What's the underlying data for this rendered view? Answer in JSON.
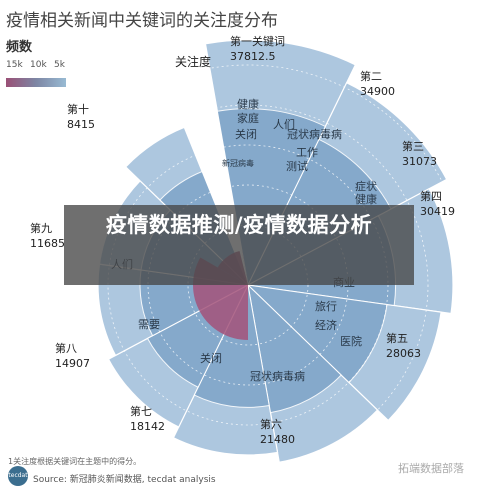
{
  "title": "疫情相关新闻中关键词的关注度分布",
  "legend": {
    "title": "频数",
    "ticks": [
      "15k",
      "10k",
      "5k"
    ]
  },
  "banner": "疫情数据推测/疫情数据分析",
  "footnote": "1关注度根据关键词在主题中的得分。",
  "source": "Source: 新冠肺炎新闻数据, tecdat analysis",
  "logo_text": "tecdat",
  "watermark": "拓端数据部落",
  "colors": {
    "outer": "#a5c1dc",
    "mid": "#7fa4c8",
    "inner": "#8a7ca6",
    "core": "#a3527a"
  },
  "chart_data": {
    "type": "radial-bar",
    "axis_label": "关注度",
    "sectors": [
      {
        "name": "第一关键词",
        "value": "37812.5"
      },
      {
        "name": "第二",
        "value": "34900"
      },
      {
        "name": "第三",
        "value": "31073"
      },
      {
        "name": "第四",
        "value": "30419"
      },
      {
        "name": "第五",
        "value": "28063"
      },
      {
        "name": "第六",
        "value": "21480"
      },
      {
        "name": "第七",
        "value": "18142"
      },
      {
        "name": "第八",
        "value": "14907"
      },
      {
        "name": "第九",
        "value": "11685"
      },
      {
        "name": "第十",
        "value": "8415"
      }
    ],
    "keywords": [
      "健康",
      "家庭",
      "人们",
      "关闭",
      "冠状病毒病",
      "工作",
      "测试",
      "症状",
      "健康",
      "商业",
      "旅行",
      "经济",
      "医院",
      "冠状病毒病",
      "关闭",
      "需要",
      "人们",
      "新冠病毒"
    ]
  }
}
